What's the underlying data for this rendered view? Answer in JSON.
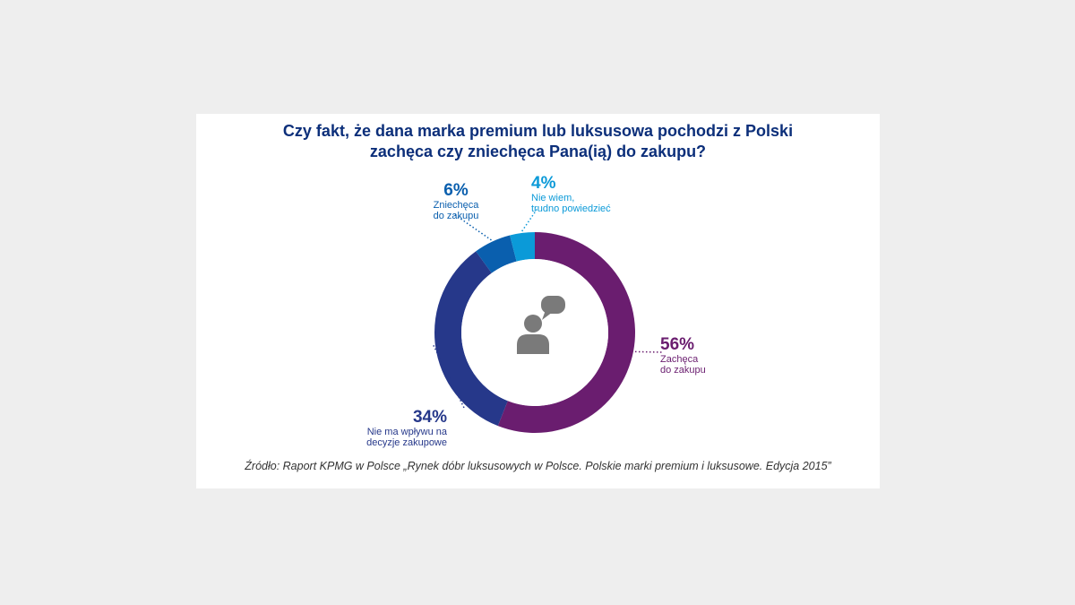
{
  "title_lines": [
    "Czy fakt, że dana marka premium lub luksusowa pochodzi z Polski",
    "zachęca czy zniechęca Pana(ią) do zakupu?"
  ],
  "source": "Źródło: Raport KPMG w Polsce „Rynek dóbr luksusowych w Polsce. Polskie marki premium i luksusowe. Edycja 2015”",
  "chart_data": {
    "type": "pie",
    "variant": "donut",
    "center_icon": "person-speech-bubble-icon",
    "slices": [
      {
        "label_pct": "56%",
        "label_lines": [
          "Zachęca",
          "do zakupu"
        ],
        "value": 56,
        "color": "#6a1d6f"
      },
      {
        "label_pct": "34%",
        "label_lines": [
          "Nie ma wpływu na",
          "decyzje zakupowe"
        ],
        "value": 34,
        "color": "#26388a"
      },
      {
        "label_pct": "6%",
        "label_lines": [
          "Zniechęca",
          "do zakupu"
        ],
        "value": 6,
        "color": "#0a5fae"
      },
      {
        "label_pct": "4%",
        "label_lines": [
          "Nie wiem,",
          "trudno powiedzieć"
        ],
        "value": 4,
        "color": "#0b9ad8"
      }
    ]
  }
}
